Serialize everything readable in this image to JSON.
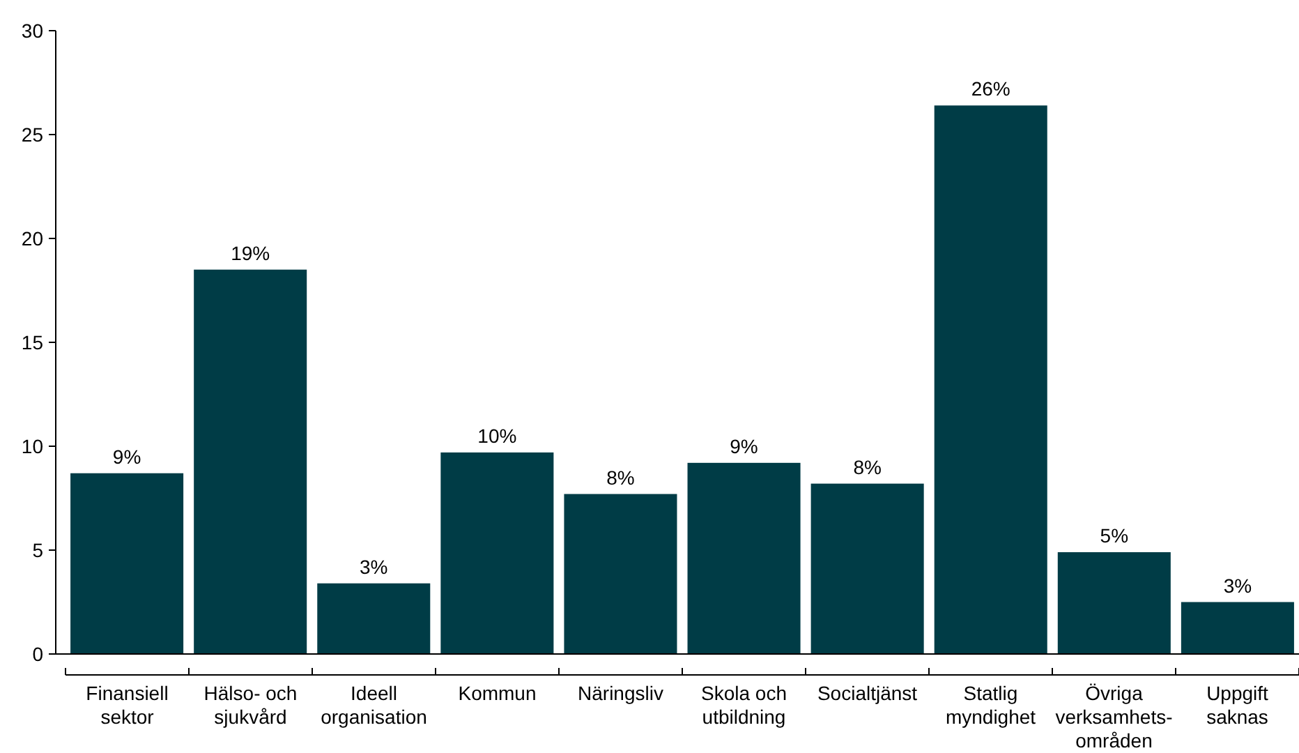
{
  "chart_data": {
    "type": "bar",
    "categories": [
      "Finansiell\nsektor",
      "Hälso- och\nsjukvård",
      "Ideell\norganisation",
      "Kommun",
      "Näringsliv",
      "Skola och\nutbildning",
      "Socialtjänst",
      "Statlig\nmyndighet",
      "Övriga\nverksamhets-\nområden",
      "Uppgift\nsaknas"
    ],
    "values": [
      8.7,
      18.5,
      3.4,
      9.7,
      7.7,
      9.2,
      8.2,
      26.4,
      4.9,
      2.5
    ],
    "value_labels": [
      "9%",
      "19%",
      "3%",
      "10%",
      "8%",
      "9%",
      "8%",
      "26%",
      "5%",
      "3%"
    ],
    "color": "#003c46",
    "ylim": [
      0,
      30
    ],
    "yticks": [
      0,
      5,
      10,
      15,
      20,
      25,
      30
    ],
    "grid": false
  }
}
